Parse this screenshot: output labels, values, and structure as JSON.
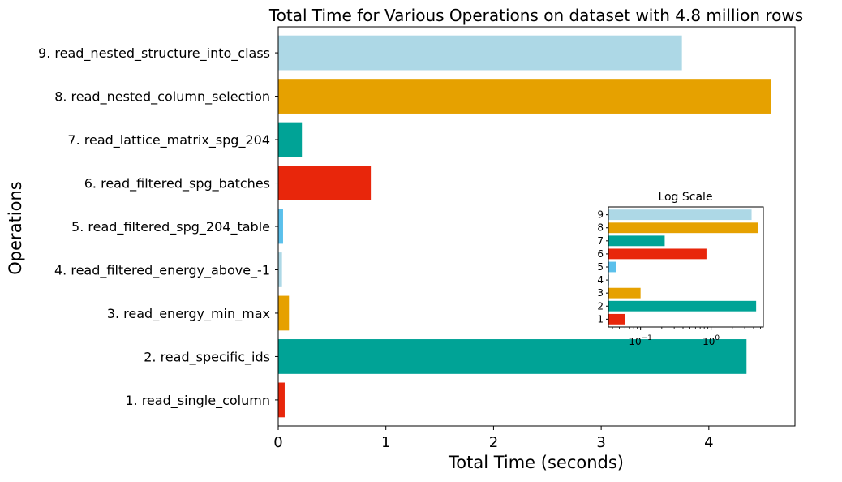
{
  "chart_data": [
    {
      "type": "bar",
      "orientation": "horizontal",
      "title": "Total Time for Various Operations on dataset with 4.8 million rows",
      "xlabel": "Total Time (seconds)",
      "ylabel": "Operations",
      "xlim": [
        0,
        4.8
      ],
      "xticks": [
        "0",
        "1",
        "2",
        "3",
        "4"
      ],
      "grid": false,
      "categories": [
        "1. read_single_column",
        "2. read_specific_ids",
        "3. read_energy_min_max",
        "4. read_filtered_energy_above_-1",
        "5. read_filtered_spg_204_table",
        "6. read_filtered_spg_batches",
        "7. read_lattice_matrix_spg_204",
        "8. read_nested_column_selection",
        "9. read_nested_structure_into_class"
      ],
      "values": [
        0.06,
        4.35,
        0.1,
        0.035,
        0.045,
        0.86,
        0.22,
        4.58,
        3.75
      ],
      "colors": [
        "#e8260b",
        "#00a396",
        "#e6a100",
        "#add8e6",
        "#5bc0eb",
        "#e8260b",
        "#00a396",
        "#e6a100",
        "#add8e6"
      ]
    },
    {
      "type": "bar",
      "orientation": "horizontal",
      "title": "Log Scale",
      "xscale": "log",
      "xlim": [
        0.035,
        5.5
      ],
      "xticks": [
        "10^-1",
        "10^0"
      ],
      "categories": [
        "1",
        "2",
        "3",
        "4",
        "5",
        "6",
        "7",
        "8",
        "9"
      ],
      "values": [
        0.06,
        4.35,
        0.1,
        0.035,
        0.045,
        0.86,
        0.22,
        4.58,
        3.75
      ],
      "colors": [
        "#e8260b",
        "#00a396",
        "#e6a100",
        "#add8e6",
        "#5bc0eb",
        "#e8260b",
        "#00a396",
        "#e6a100",
        "#add8e6"
      ]
    }
  ]
}
